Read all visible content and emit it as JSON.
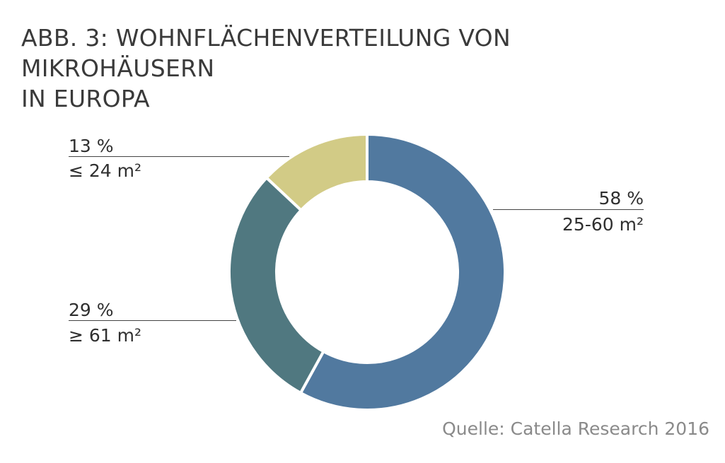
{
  "title": {
    "line1": "ABB. 3: WOHNFLÄCHENVERTEILUNG VON MIKROHÄUSERN",
    "line2": "IN EUROPA"
  },
  "source": "Quelle: Catella Research 2016",
  "colors": {
    "segment_25_60": "#51799f",
    "segment_ge_61": "#507880",
    "segment_le_24": "#d2cb86",
    "separator": "#ffffff"
  },
  "labels": {
    "s58": {
      "percent": "58 %",
      "range": "25-60 m²"
    },
    "s29": {
      "percent": "29 %",
      "range": "≥ 61 m²"
    },
    "s13": {
      "percent": "13 %",
      "range": "≤ 24 m²"
    }
  },
  "chart_data": {
    "type": "pie",
    "variant": "donut",
    "title": "ABB. 3: WOHNFLÄCHENVERTEILUNG VON MIKROHÄUSERN IN EUROPA",
    "start": "12 o'clock",
    "direction": "clockwise",
    "slices": [
      {
        "label": "25-60 m²",
        "value": 58,
        "value_label": "58 %",
        "color": "#51799f"
      },
      {
        "label": "≥ 61 m²",
        "value": 29,
        "value_label": "29 %",
        "color": "#507880"
      },
      {
        "label": "≤ 24 m²",
        "value": 13,
        "value_label": "13 %",
        "color": "#d2cb86"
      }
    ],
    "legend": "none"
  }
}
